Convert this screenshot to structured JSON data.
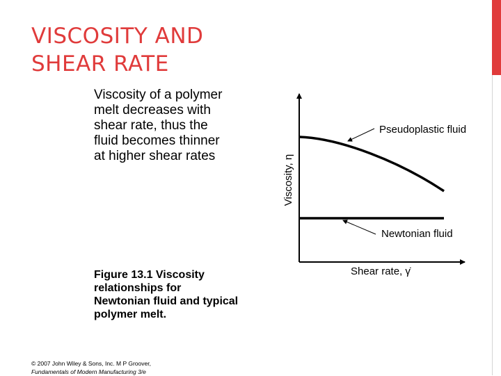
{
  "slide": {
    "title_lines": [
      "VISCOSITY AND",
      "SHEAR RATE"
    ],
    "body_lines": [
      "Viscosity of a polymer",
      "melt decreases with",
      "shear rate, thus the",
      "fluid becomes thinner",
      "at higher shear rates"
    ],
    "caption_lines": [
      "Figure 13.1  Viscosity",
      "relationships for",
      "Newtonian fluid and typical",
      "polymer melt."
    ],
    "copyright_line": "© 2007 John Wiley & Sons, Inc.  M P Groover,",
    "book_title": "Fundamentals of Modern Manufacturing 3/e",
    "accent_color": "#e03b3b"
  },
  "figure": {
    "y_axis_label": "Viscosity, η",
    "x_axis_label": "Shear rate, γ̇",
    "curves": [
      {
        "name": "pseudoplastic",
        "label": "Pseudoplastic fluid"
      },
      {
        "name": "newtonian",
        "label": "Newtonian fluid"
      }
    ]
  }
}
